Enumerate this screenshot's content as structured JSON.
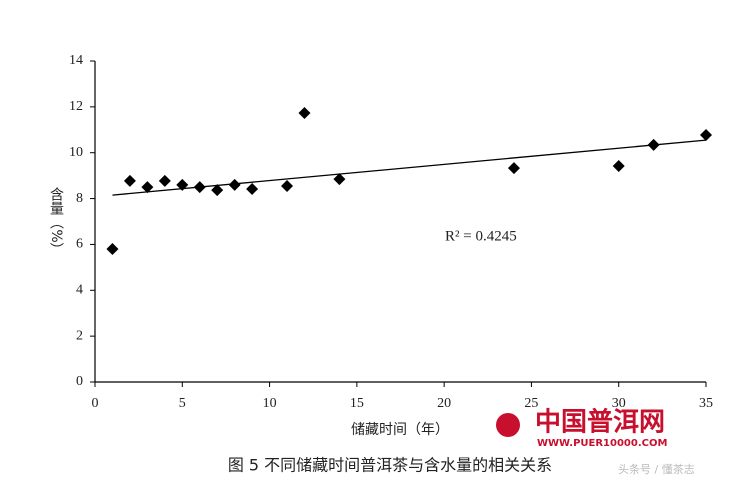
{
  "chart_data": {
    "type": "scatter",
    "title": "图 5  不同储藏时间普洱茶与含水量的相关关系",
    "x_label": "储藏时间（年）",
    "y_label": "含量（%）",
    "annotation": "R² = 0.4245",
    "x": [
      1,
      2,
      3,
      4,
      5,
      6,
      7,
      8,
      9,
      11,
      12,
      14,
      24,
      30,
      32,
      35
    ],
    "values": [
      5.8,
      8.77,
      8.5,
      8.77,
      8.6,
      8.5,
      8.37,
      8.6,
      8.42,
      8.55,
      11.73,
      8.85,
      9.33,
      9.42,
      10.34,
      10.77
    ],
    "color": "#000000",
    "trendline": {
      "x": [
        1,
        35
      ],
      "values": [
        8.15,
        10.55
      ]
    },
    "xlim": [
      0,
      35
    ],
    "ylim": [
      0,
      14
    ],
    "xticks": [
      0,
      5,
      10,
      15,
      20,
      25,
      30,
      35
    ],
    "yticks": [
      0,
      2,
      4,
      6,
      8,
      10,
      12,
      14
    ]
  },
  "watermark": {
    "name": "中国普洱网",
    "url": "WWW.PUER10000.COM",
    "credit": "头条号 / 懂茶志"
  }
}
